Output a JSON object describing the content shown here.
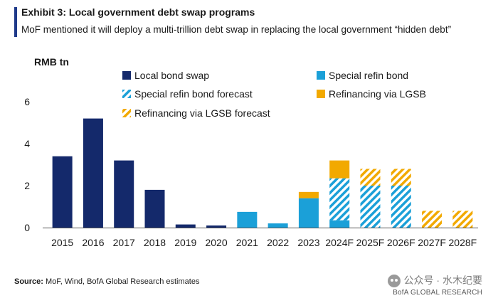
{
  "header": {
    "title": "Exhibit 3: Local government debt swap programs",
    "subtitle": "MoF mentioned it will deploy a multi-trillion debt swap in replacing the local government “hidden debt”"
  },
  "chart_data": {
    "type": "bar",
    "stacked": true,
    "ylabel": "RMB tn",
    "ylim": [
      0,
      6
    ],
    "yticks": [
      0,
      2,
      4,
      6
    ],
    "grid": false,
    "legend_position": "top",
    "categories": [
      "2015",
      "2016",
      "2017",
      "2018",
      "2019",
      "2020",
      "2021",
      "2022",
      "2023",
      "2024F",
      "2025F",
      "2026F",
      "2027F",
      "2028F"
    ],
    "series": [
      {
        "name": "Local bond swap",
        "color": "#14296b",
        "pattern": "solid",
        "values": [
          3.4,
          5.2,
          3.2,
          1.8,
          0.15,
          0.1,
          0,
          0,
          0,
          0,
          0,
          0,
          0,
          0
        ]
      },
      {
        "name": "Special refin bond",
        "color": "#1ba0d8",
        "pattern": "solid",
        "values": [
          0,
          0,
          0,
          0,
          0,
          0,
          0.75,
          0.2,
          1.4,
          0.35,
          0,
          0,
          0,
          0
        ]
      },
      {
        "name": "Special refin bond forecast",
        "color": "#1ba0d8",
        "pattern": "hatch",
        "values": [
          0,
          0,
          0,
          0,
          0,
          0,
          0,
          0,
          0,
          2.0,
          2.0,
          2.0,
          0,
          0
        ]
      },
      {
        "name": "Refinancing via LGSB",
        "color": "#f2a900",
        "pattern": "solid",
        "values": [
          0,
          0,
          0,
          0,
          0,
          0,
          0,
          0,
          0.3,
          0.85,
          0,
          0,
          0,
          0
        ]
      },
      {
        "name": "Refinancing via LGSB forecast",
        "color": "#f2a900",
        "pattern": "hatch",
        "values": [
          0,
          0,
          0,
          0,
          0,
          0,
          0,
          0,
          0,
          0,
          0.8,
          0.8,
          0.8,
          0.8
        ]
      }
    ]
  },
  "footer": {
    "source_label": "Source:",
    "source_text": " MoF, Wind, BofA Global Research estimates"
  },
  "watermark": {
    "line1": "公众号 · 水木纪要",
    "line2": "BofA GLOBAL RESEARCH"
  }
}
